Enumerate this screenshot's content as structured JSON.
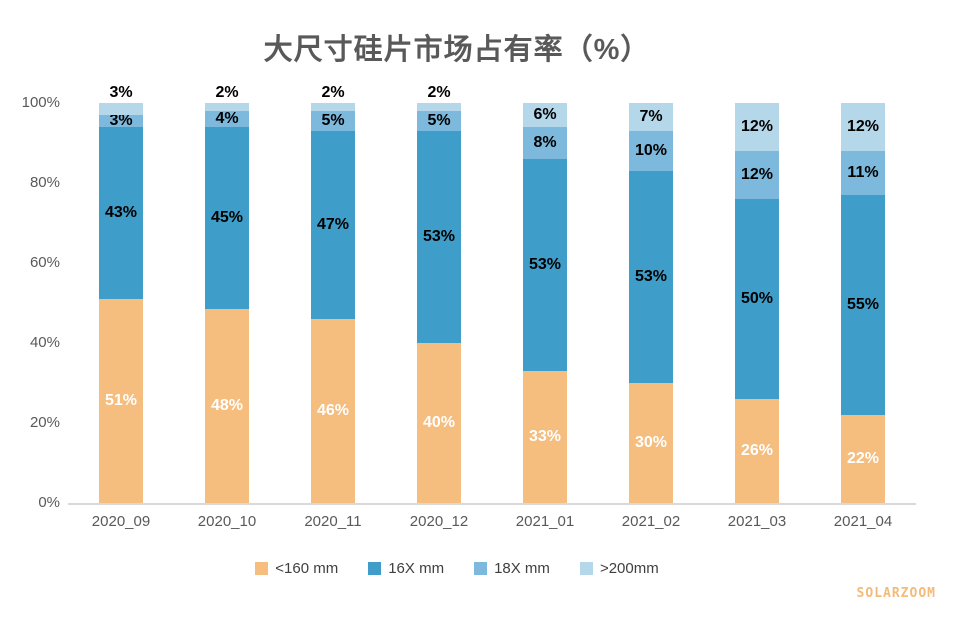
{
  "page": {
    "title": "大尺寸硅片市场占有率（%）",
    "watermark": "SOLARZOOM"
  },
  "colors": {
    "title_text": "#595959",
    "axis_text": "#595959",
    "axis_line": "#d9d9d9",
    "background": "#ffffff",
    "watermark_text": "#f2bb79"
  },
  "chart_data": {
    "type": "bar",
    "subtype": "stacked-100-percent-column",
    "title": "大尺寸硅片市场占有率（%）",
    "xlabel": "",
    "ylabel": "",
    "ylim": [
      0,
      100
    ],
    "y_ticks": [
      "0%",
      "20%",
      "40%",
      "60%",
      "80%",
      "100%"
    ],
    "grid": false,
    "legend_position": "bottom",
    "categories": [
      "2020_09",
      "2020_10",
      "2020_11",
      "2020_12",
      "2021_01",
      "2021_02",
      "2021_03",
      "2021_04"
    ],
    "series": [
      {
        "name": "<160 mm",
        "color": "#f5bd7e",
        "label_color": "#ffffff",
        "values": [
          51,
          48,
          46,
          40,
          33,
          30,
          26,
          22
        ]
      },
      {
        "name": "16X mm",
        "color": "#3e9ec9",
        "label_color": "#000000",
        "values": [
          43,
          45,
          47,
          53,
          53,
          53,
          50,
          55
        ]
      },
      {
        "name": "18X mm",
        "color": "#7cb9dc",
        "label_color": "#000000",
        "values": [
          3,
          4,
          5,
          5,
          8,
          10,
          12,
          11
        ]
      },
      {
        "name": ">200mm",
        "color": "#b5d7ea",
        "label_color": "#000000",
        "values": [
          3,
          2,
          2,
          2,
          6,
          7,
          12,
          12
        ]
      }
    ]
  }
}
